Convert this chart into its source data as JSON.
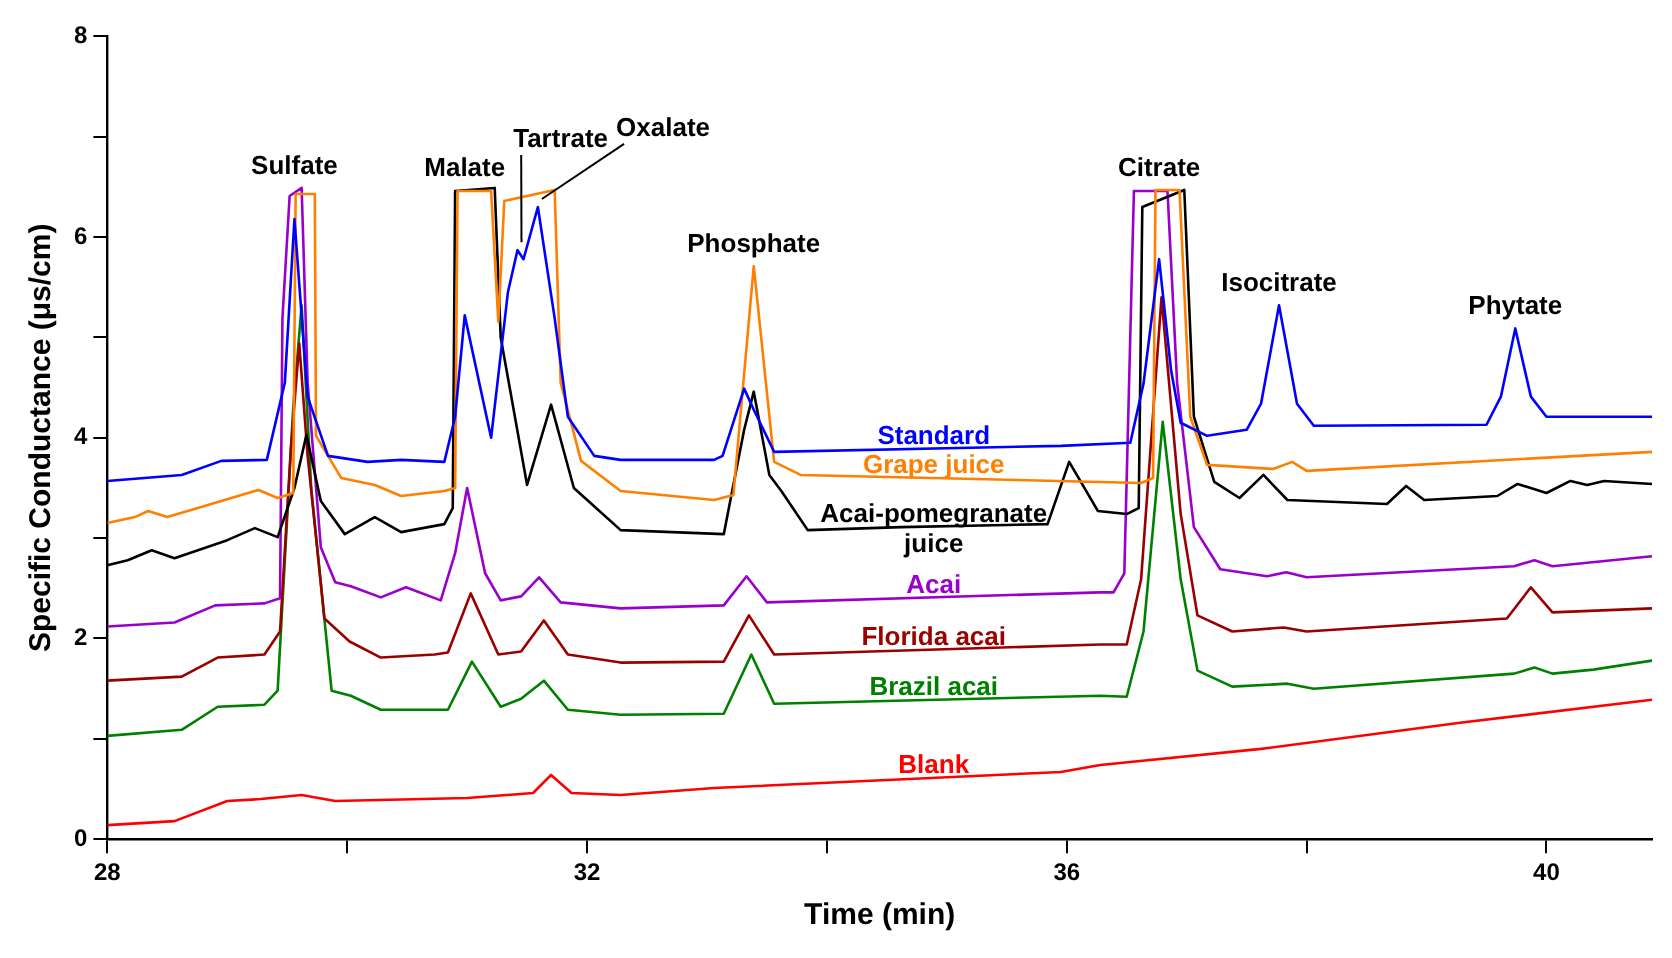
{
  "chart_data": {
    "type": "line",
    "xlabel": "Time (min)",
    "ylabel": "Specific Conductance (μs/cm)",
    "xlim": [
      28,
      40.88
    ],
    "xticks": [
      28,
      {
        "value": 30,
        "label": null
      },
      32,
      {
        "value": 34,
        "label": null
      },
      36,
      {
        "value": 38,
        "label": null
      },
      40
    ],
    "ylim": [
      0,
      8
    ],
    "yticks": [
      0,
      {
        "value": 1,
        "label": null
      },
      2,
      {
        "value": 3,
        "label": null
      },
      4,
      {
        "value": 5,
        "label": null
      },
      6,
      {
        "value": 7,
        "label": null
      },
      8
    ],
    "marker": "none",
    "line_style": "solid",
    "series": [
      {
        "name": "Standard",
        "color": "#0000ff",
        "x": [
          28,
          28.62,
          28.95,
          29.33,
          29.48,
          29.56,
          29.67,
          29.84,
          30.17,
          30.45,
          30.81,
          30.9,
          30.98,
          31.2,
          31.34,
          31.42,
          31.47,
          31.59,
          31.73,
          31.84,
          32.06,
          32.28,
          33.06,
          33.13,
          33.31,
          33.39,
          33.56,
          35.95,
          36.53,
          36.64,
          36.77,
          36.87,
          36.95,
          37.17,
          37.5,
          37.62,
          37.77,
          37.92,
          38.06,
          39.5,
          39.62,
          39.74,
          39.87,
          40.0,
          40.88
        ],
        "values": [
          3.57,
          3.63,
          3.77,
          3.78,
          4.55,
          6.18,
          4.41,
          3.82,
          3.76,
          3.78,
          3.76,
          4.21,
          5.22,
          4.0,
          5.45,
          5.87,
          5.78,
          6.3,
          5.19,
          4.21,
          3.82,
          3.78,
          3.78,
          3.82,
          4.49,
          4.28,
          3.86,
          3.92,
          3.95,
          4.54,
          5.78,
          4.67,
          4.15,
          4.02,
          4.08,
          4.34,
          5.32,
          4.34,
          4.12,
          4.13,
          4.41,
          5.09,
          4.41,
          4.21,
          4.21
        ]
      },
      {
        "name": "Grape juice",
        "color": "#ff7f00",
        "x": [
          28,
          28.23,
          28.34,
          28.5,
          28.95,
          29.26,
          29.42,
          29.55,
          29.57,
          29.73,
          29.74,
          29.95,
          30.23,
          30.45,
          30.81,
          30.9,
          30.92,
          31.2,
          31.26,
          31.31,
          31.73,
          31.78,
          31.95,
          32.28,
          33.06,
          33.22,
          33.39,
          33.56,
          33.78,
          36.62,
          36.72,
          36.74,
          36.94,
          37.03,
          37.17,
          37.72,
          37.88,
          38.0,
          40.88
        ],
        "values": [
          3.15,
          3.21,
          3.27,
          3.21,
          3.37,
          3.48,
          3.4,
          3.45,
          6.43,
          6.43,
          4.02,
          3.6,
          3.53,
          3.42,
          3.47,
          3.5,
          6.46,
          6.46,
          5.16,
          6.36,
          6.47,
          4.55,
          3.77,
          3.47,
          3.38,
          3.43,
          5.71,
          3.76,
          3.63,
          3.55,
          3.6,
          6.47,
          6.47,
          4.21,
          3.73,
          3.69,
          3.76,
          3.67,
          3.86
        ]
      },
      {
        "name": "Acai-pomegranate juice",
        "color": "#000000",
        "x": [
          28,
          28.17,
          28.37,
          28.56,
          29.0,
          29.23,
          29.42,
          29.56,
          29.66,
          29.78,
          29.98,
          30.23,
          30.45,
          30.81,
          30.88,
          30.9,
          31.23,
          31.28,
          31.5,
          31.7,
          31.89,
          32.28,
          33.14,
          33.31,
          33.39,
          33.52,
          33.62,
          33.84,
          34.62,
          35.84,
          36.02,
          36.26,
          36.5,
          36.6,
          36.63,
          36.98,
          37.06,
          37.23,
          37.44,
          37.64,
          37.84,
          38.67,
          38.83,
          38.98,
          39.59,
          39.76,
          40.0,
          40.2,
          40.34,
          40.48,
          40.88
        ],
        "values": [
          2.73,
          2.78,
          2.88,
          2.8,
          2.98,
          3.1,
          3.01,
          3.5,
          4.03,
          3.37,
          3.04,
          3.21,
          3.06,
          3.14,
          3.3,
          6.46,
          6.49,
          5.0,
          3.53,
          4.33,
          3.5,
          3.08,
          3.04,
          4.08,
          4.46,
          3.63,
          3.47,
          3.08,
          3.11,
          3.14,
          3.76,
          3.27,
          3.24,
          3.3,
          6.3,
          6.47,
          4.21,
          3.56,
          3.4,
          3.63,
          3.38,
          3.34,
          3.52,
          3.38,
          3.42,
          3.54,
          3.45,
          3.57,
          3.53,
          3.57,
          3.54
        ]
      },
      {
        "name": "Acai",
        "color": "#9900cc",
        "x": [
          28,
          28.56,
          28.9,
          29.31,
          29.44,
          29.46,
          29.52,
          29.62,
          29.67,
          29.78,
          29.9,
          30.03,
          30.28,
          30.49,
          30.78,
          30.9,
          31.0,
          31.15,
          31.28,
          31.45,
          31.6,
          31.78,
          32.28,
          33.14,
          33.33,
          33.5,
          36.28,
          36.39,
          36.48,
          36.56,
          36.84,
          36.92,
          37.06,
          37.28,
          37.67,
          37.83,
          38.0,
          39.73,
          39.9,
          40.05,
          40.88
        ],
        "values": [
          2.12,
          2.16,
          2.33,
          2.35,
          2.4,
          5.19,
          6.41,
          6.49,
          4.55,
          2.91,
          2.56,
          2.52,
          2.41,
          2.51,
          2.38,
          2.85,
          3.5,
          2.65,
          2.38,
          2.42,
          2.61,
          2.36,
          2.3,
          2.33,
          2.62,
          2.36,
          2.46,
          2.46,
          2.65,
          6.46,
          6.46,
          4.55,
          3.11,
          2.69,
          2.62,
          2.66,
          2.61,
          2.72,
          2.78,
          2.72,
          2.82
        ]
      },
      {
        "name": "Florida acai",
        "color": "#990000",
        "x": [
          28,
          28.62,
          28.92,
          29.31,
          29.44,
          29.53,
          29.6,
          29.67,
          29.81,
          30.02,
          30.28,
          30.73,
          30.84,
          31.03,
          31.26,
          31.45,
          31.64,
          31.84,
          32.28,
          33.14,
          33.35,
          33.56,
          36.28,
          36.5,
          36.62,
          36.79,
          36.95,
          37.09,
          37.38,
          37.81,
          38.0,
          39.67,
          39.87,
          40.05,
          40.88
        ],
        "values": [
          1.58,
          1.62,
          1.81,
          1.84,
          2.07,
          3.89,
          4.94,
          3.82,
          2.2,
          1.97,
          1.81,
          1.84,
          1.86,
          2.45,
          1.84,
          1.87,
          2.18,
          1.84,
          1.76,
          1.77,
          2.23,
          1.84,
          1.94,
          1.94,
          2.59,
          5.4,
          3.24,
          2.23,
          2.07,
          2.11,
          2.07,
          2.2,
          2.51,
          2.26,
          2.3
        ]
      },
      {
        "name": "Brazil acai",
        "color": "#008000",
        "x": [
          28,
          28.62,
          28.92,
          29.31,
          29.42,
          29.55,
          29.62,
          29.7,
          29.87,
          30.03,
          30.28,
          30.84,
          31.04,
          31.28,
          31.45,
          31.64,
          31.84,
          32.28,
          33.14,
          33.37,
          33.56,
          36.28,
          36.5,
          36.64,
          36.8,
          36.95,
          37.09,
          37.38,
          37.84,
          38.06,
          39.73,
          39.9,
          40.05,
          40.39,
          40.88
        ],
        "values": [
          1.03,
          1.09,
          1.32,
          1.34,
          1.48,
          4.3,
          5.32,
          3.5,
          1.48,
          1.43,
          1.29,
          1.29,
          1.77,
          1.32,
          1.4,
          1.58,
          1.29,
          1.24,
          1.25,
          1.84,
          1.35,
          1.43,
          1.42,
          2.07,
          4.16,
          2.59,
          1.68,
          1.52,
          1.55,
          1.5,
          1.65,
          1.71,
          1.65,
          1.69,
          1.78
        ]
      },
      {
        "name": "Blank",
        "color": "#ff0000",
        "x": [
          28,
          28.56,
          29.0,
          29.28,
          29.62,
          29.9,
          31.0,
          31.55,
          31.7,
          31.87,
          32.28,
          33.06,
          35.95,
          36.28,
          37.62,
          39.28,
          40.88
        ],
        "values": [
          0.14,
          0.18,
          0.38,
          0.4,
          0.44,
          0.38,
          0.41,
          0.46,
          0.64,
          0.46,
          0.44,
          0.51,
          0.67,
          0.74,
          0.9,
          1.16,
          1.39
        ]
      }
    ],
    "annotations": [
      {
        "text": "Sulfate",
        "x": 29.56,
        "y": 6.18
      },
      {
        "text": "Malate",
        "x": 30.98,
        "y": 6.47
      },
      {
        "text": "Tartrate",
        "x": 31.42,
        "y": 5.87
      },
      {
        "text": "Oxalate",
        "x": 31.59,
        "y": 6.3
      },
      {
        "text": "Phosphate",
        "x": 33.39,
        "y": 5.71
      },
      {
        "text": "Citrate",
        "x": 36.77,
        "y": 5.78
      },
      {
        "text": "Isocitrate",
        "x": 37.77,
        "y": 5.32
      },
      {
        "text": "Phytate",
        "x": 39.74,
        "y": 5.09
      }
    ]
  }
}
